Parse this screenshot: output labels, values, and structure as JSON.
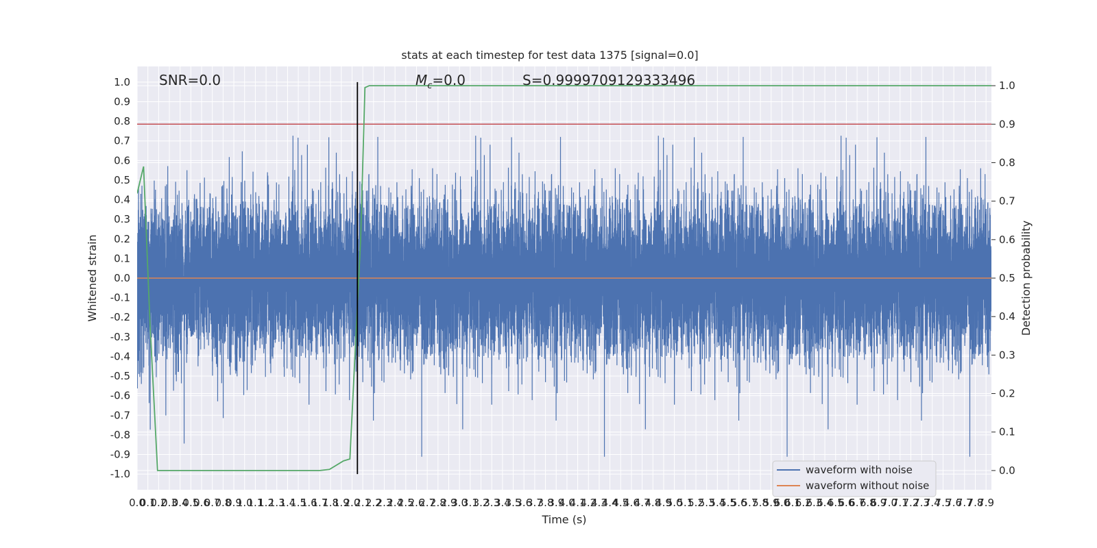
{
  "chart_data": {
    "type": "line",
    "title": "stats at each timestep for test data 1375 [signal=0.0]",
    "xlabel": "Time (s)",
    "ylabel": "Whitened strain",
    "y2label": "Detection probability",
    "xlim": [
      0.0,
      7.95
    ],
    "ylim": [
      -1.08,
      1.08
    ],
    "y2lim": [
      -0.05,
      1.05
    ],
    "x_tick_step": 0.1,
    "y_ticks": [
      -1.0,
      -0.9,
      -0.8,
      -0.7,
      -0.6,
      -0.5,
      -0.4,
      -0.3,
      -0.2,
      -0.1,
      0.0,
      0.1,
      0.2,
      0.3,
      0.4,
      0.5,
      0.6,
      0.7,
      0.8,
      0.9,
      1.0
    ],
    "y2_ticks": [
      0.0,
      0.1,
      0.2,
      0.3,
      0.4,
      0.5,
      0.6,
      0.7,
      0.8,
      0.9,
      1.0
    ],
    "grid": true,
    "legend_placement": "lower-right",
    "annotations": {
      "snr": "SNR=0.0",
      "mc": "=0.0",
      "s": "S=0.9999709129333496"
    },
    "series": [
      {
        "name": "waveform with noise",
        "color": "#4c72b0",
        "sample_rate": 2048,
        "typical_amplitude": 0.2,
        "peak_amplitude": 1.0
      },
      {
        "name": "waveform without noise",
        "color": "#dd8452",
        "values": "0.0 at all times"
      },
      {
        "name": "detection probability",
        "axis": "right",
        "color": "#55a868",
        "x": [
          0.0,
          0.06,
          0.12,
          0.19,
          1.7,
          1.79,
          1.92,
          1.98,
          2.08,
          2.12,
          2.16,
          7.95
        ],
        "y": [
          0.72,
          0.79,
          0.38,
          0.0,
          0.0,
          0.003,
          0.025,
          0.03,
          0.6,
          0.995,
          1.0,
          1.0
        ]
      }
    ],
    "threshold_line": {
      "axis": "right",
      "y": 0.9,
      "color": "#c44e52"
    },
    "vertical_line": {
      "x": 2.05,
      "color": "#000000"
    },
    "colors": {
      "plot_bg": "#eaeaf2",
      "grid": "#ffffff"
    }
  }
}
